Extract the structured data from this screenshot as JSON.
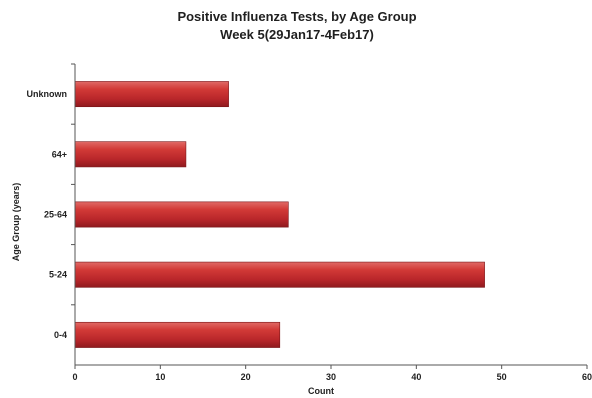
{
  "chart_data": {
    "type": "bar",
    "orientation": "horizontal",
    "title": "Positive Influenza Tests, by Age Group",
    "subtitle": "Week 5(29Jan17-4Feb17)",
    "xlabel": "Count",
    "ylabel": "Age Group (years)",
    "categories": [
      "0-4",
      "5-24",
      "25-64",
      "64+",
      "Unknown"
    ],
    "values": [
      24,
      48,
      25,
      13,
      18
    ],
    "xlim": [
      0,
      60
    ],
    "xticks": [
      0,
      10,
      20,
      30,
      40,
      50,
      60
    ],
    "grid": false,
    "legend": "none",
    "bar_color": "#c0252a"
  }
}
